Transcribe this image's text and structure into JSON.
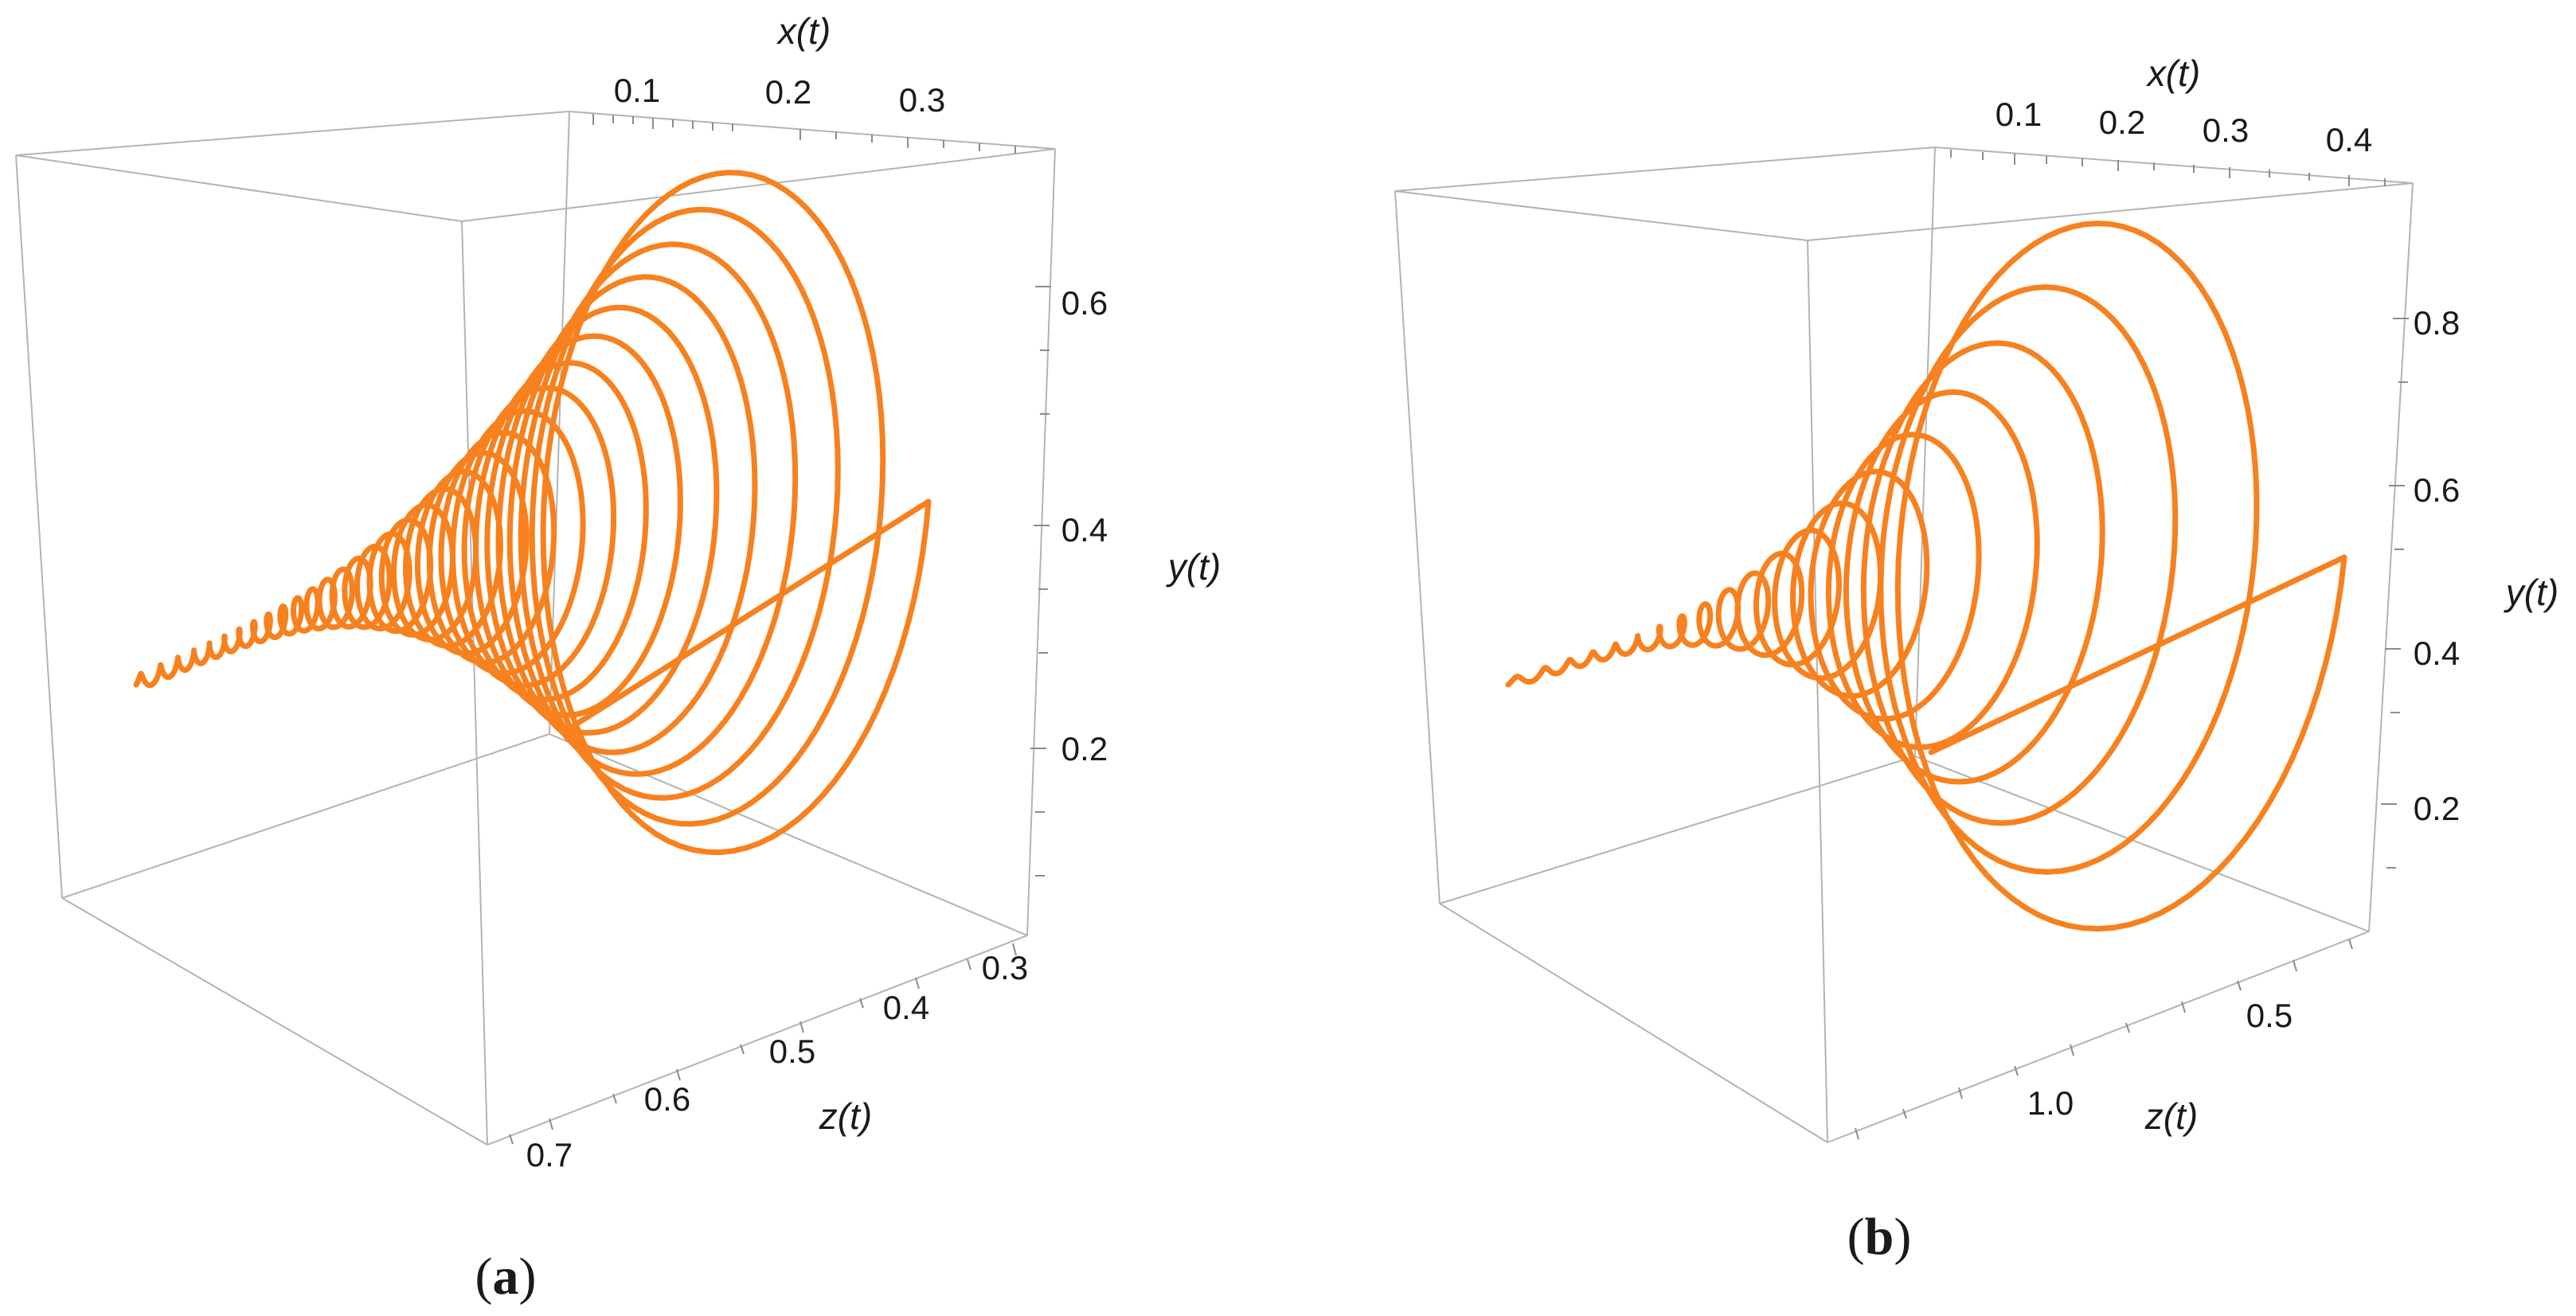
{
  "chart_data": [
    {
      "panel": "(a)",
      "panel_letter": "a",
      "type": "line3d",
      "series_color": "#f7811e",
      "axes": {
        "x": {
          "label": "x(t)",
          "ticks": [
            "0.1",
            "0.2",
            "0.3"
          ]
        },
        "y": {
          "label": "y(t)",
          "ticks": [
            "0.2",
            "0.4",
            "0.6"
          ]
        },
        "z": {
          "label": "z(t)",
          "ticks": [
            "0.3",
            "0.4",
            "0.5",
            "0.6",
            "0.7"
          ]
        }
      },
      "trajectory": {
        "description": "trajectory spiralling from a tight narrow coil at large z(t) out into large loops near z(t) ≈ 0.3",
        "start": {
          "x": 0.02,
          "y": 0.22,
          "z": 0.3
        },
        "coil_turns": 26,
        "large_loops": 6
      }
    },
    {
      "panel": "(b)",
      "panel_letter": "b",
      "type": "line3d",
      "series_color": "#f7811e",
      "axes": {
        "x": {
          "label": "x(t)",
          "ticks": [
            "0.1",
            "0.2",
            "0.3",
            "0.4"
          ]
        },
        "y": {
          "label": "y(t)",
          "ticks": [
            "0.2",
            "0.4",
            "0.6",
            "0.8"
          ]
        },
        "z": {
          "label": "z(t)",
          "ticks": [
            "0.5",
            "1.0"
          ]
        }
      },
      "trajectory": {
        "description": "trajectory spiralling from a tight narrow coil at large z(t) out into large loops near small z(t)",
        "start": {
          "x": 0.02,
          "y": 0.23,
          "z": 0.1
        },
        "coil_turns": 16,
        "large_loops": 4
      }
    }
  ]
}
